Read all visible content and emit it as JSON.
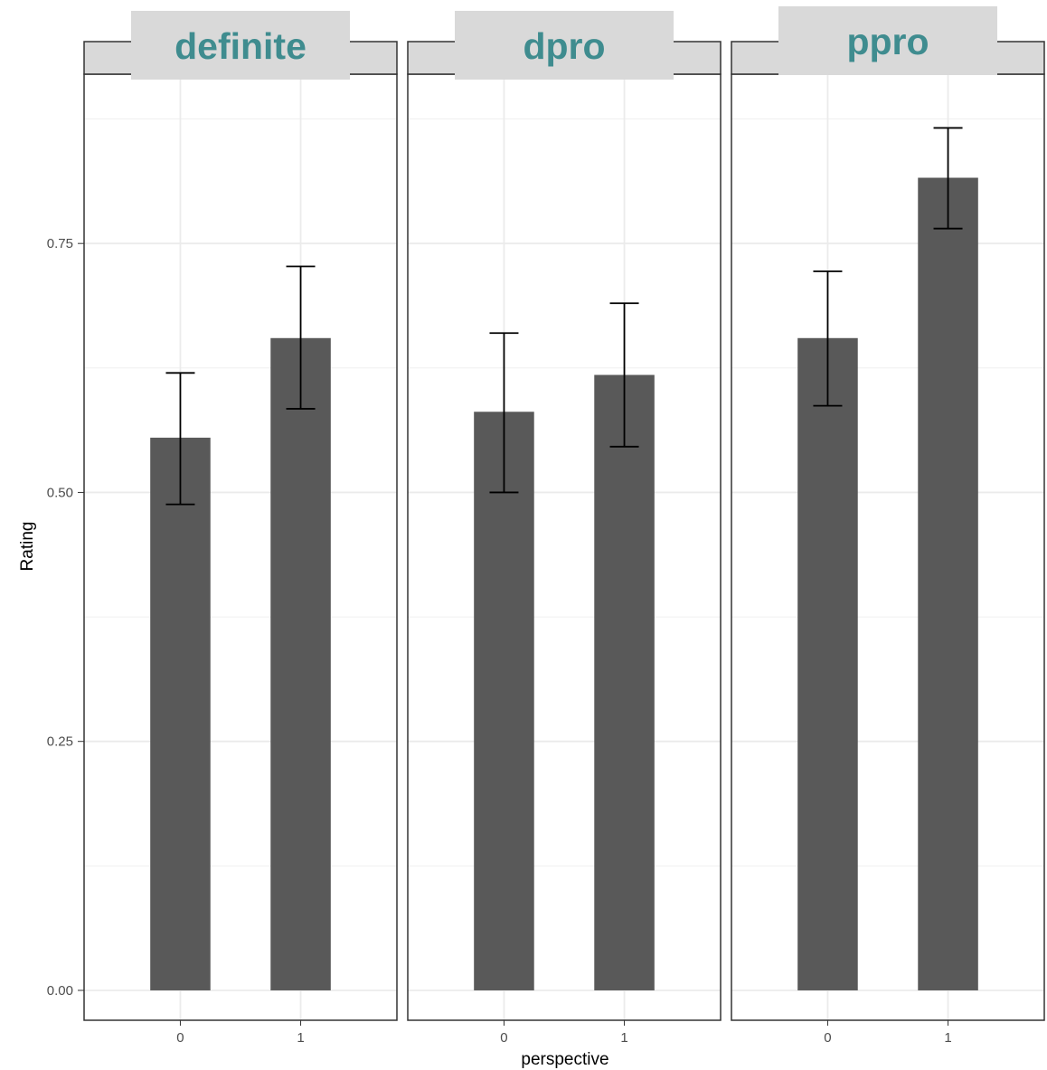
{
  "chart_data": {
    "type": "bar",
    "xlabel": "perspective",
    "ylabel": "Rating",
    "categories": [
      "0",
      "1"
    ],
    "ylim": [
      -0.03,
      0.92
    ],
    "y_ticks": [
      0.0,
      0.25,
      0.5,
      0.75
    ],
    "y_tick_labels": [
      "0.00",
      "0.25",
      "0.50",
      "0.75"
    ],
    "grid": true,
    "bar_color": "#595959",
    "strip_text_color": "#3f8c8f",
    "strip_fill": "#d9d9d9",
    "panels": [
      {
        "label": "definite",
        "values": [
          0.555,
          0.655
        ],
        "error_low": [
          0.488,
          0.584
        ],
        "error_high": [
          0.62,
          0.727
        ]
      },
      {
        "label": "dpro",
        "values": [
          0.581,
          0.618
        ],
        "error_low": [
          0.5,
          0.546
        ],
        "error_high": [
          0.66,
          0.69
        ]
      },
      {
        "label": "ppro",
        "values": [
          0.655,
          0.816
        ],
        "error_low": [
          0.587,
          0.765
        ],
        "error_high": [
          0.722,
          0.866
        ]
      }
    ]
  }
}
